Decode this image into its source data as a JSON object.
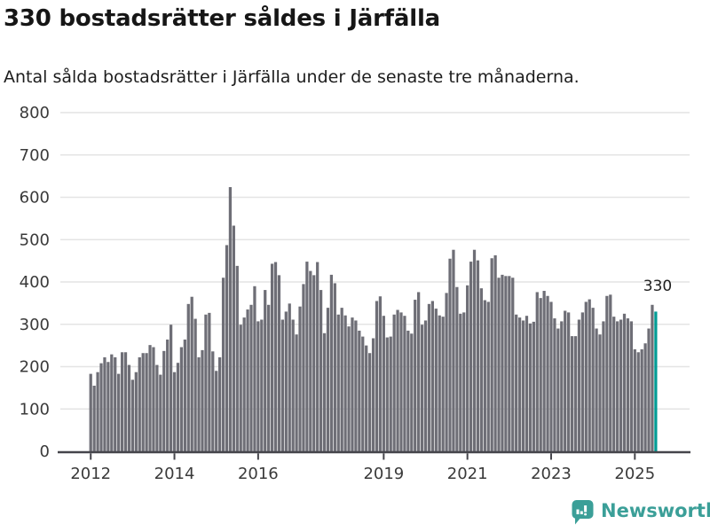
{
  "header": {
    "title": "330 bostadsrätter såldes i Järfälla",
    "subtitle": "Antal sålda bostadsrätter i Järfälla under de senaste tre månaderna."
  },
  "chart_data": {
    "type": "bar",
    "title": "330 bostadsrätter såldes i Järfälla",
    "subtitle": "Antal sålda bostadsrätter i Järfälla under de senaste tre månaderna.",
    "x_start": "2012-01",
    "x_end": "2025-07",
    "months_per_bar": 1,
    "ylim": [
      0,
      800
    ],
    "y_ticks": [
      0,
      100,
      200,
      300,
      400,
      500,
      600,
      700,
      800
    ],
    "x_tick_years": [
      2012,
      2014,
      2016,
      2019,
      2021,
      2023,
      2025
    ],
    "grid": true,
    "legend": "none",
    "bar_color": "#6e6e76",
    "highlight_color": "#009c95",
    "highlight_index": 162,
    "annotation_label": "330",
    "annotation_value": 330,
    "values": [
      183,
      155,
      187,
      208,
      222,
      211,
      229,
      222,
      183,
      234,
      234,
      204,
      169,
      187,
      222,
      232,
      232,
      251,
      246,
      204,
      181,
      237,
      264,
      299,
      187,
      209,
      246,
      264,
      348,
      365,
      313,
      222,
      239,
      323,
      327,
      236,
      190,
      222,
      410,
      487,
      624,
      533,
      438,
      299,
      316,
      335,
      346,
      390,
      307,
      311,
      381,
      346,
      443,
      447,
      416,
      311,
      330,
      349,
      311,
      276,
      342,
      395,
      448,
      426,
      416,
      447,
      381,
      279,
      339,
      417,
      397,
      323,
      339,
      321,
      295,
      316,
      309,
      285,
      271,
      250,
      232,
      267,
      355,
      366,
      320,
      269,
      271,
      323,
      334,
      328,
      320,
      285,
      278,
      358,
      376,
      299,
      309,
      348,
      355,
      337,
      321,
      318,
      374,
      455,
      476,
      388,
      325,
      328,
      392,
      448,
      476,
      451,
      385,
      357,
      353,
      456,
      463,
      410,
      417,
      414,
      414,
      410,
      323,
      316,
      309,
      320,
      302,
      306,
      376,
      362,
      379,
      367,
      353,
      314,
      290,
      307,
      332,
      328,
      272,
      272,
      311,
      328,
      353,
      359,
      339,
      290,
      276,
      307,
      367,
      370,
      318,
      307,
      311,
      325,
      314,
      307,
      241,
      234,
      241,
      255,
      290,
      346,
      330
    ]
  },
  "axis_style": {
    "label_color": "#3a3a3a",
    "grid_color": "#e4e4e4",
    "axis_color": "#45454b"
  },
  "footer": {
    "brand_name": "Newsworthy",
    "brand_color": "#3b9f98",
    "icon": "newsworthy-speech-bubble-chart-icon"
  }
}
